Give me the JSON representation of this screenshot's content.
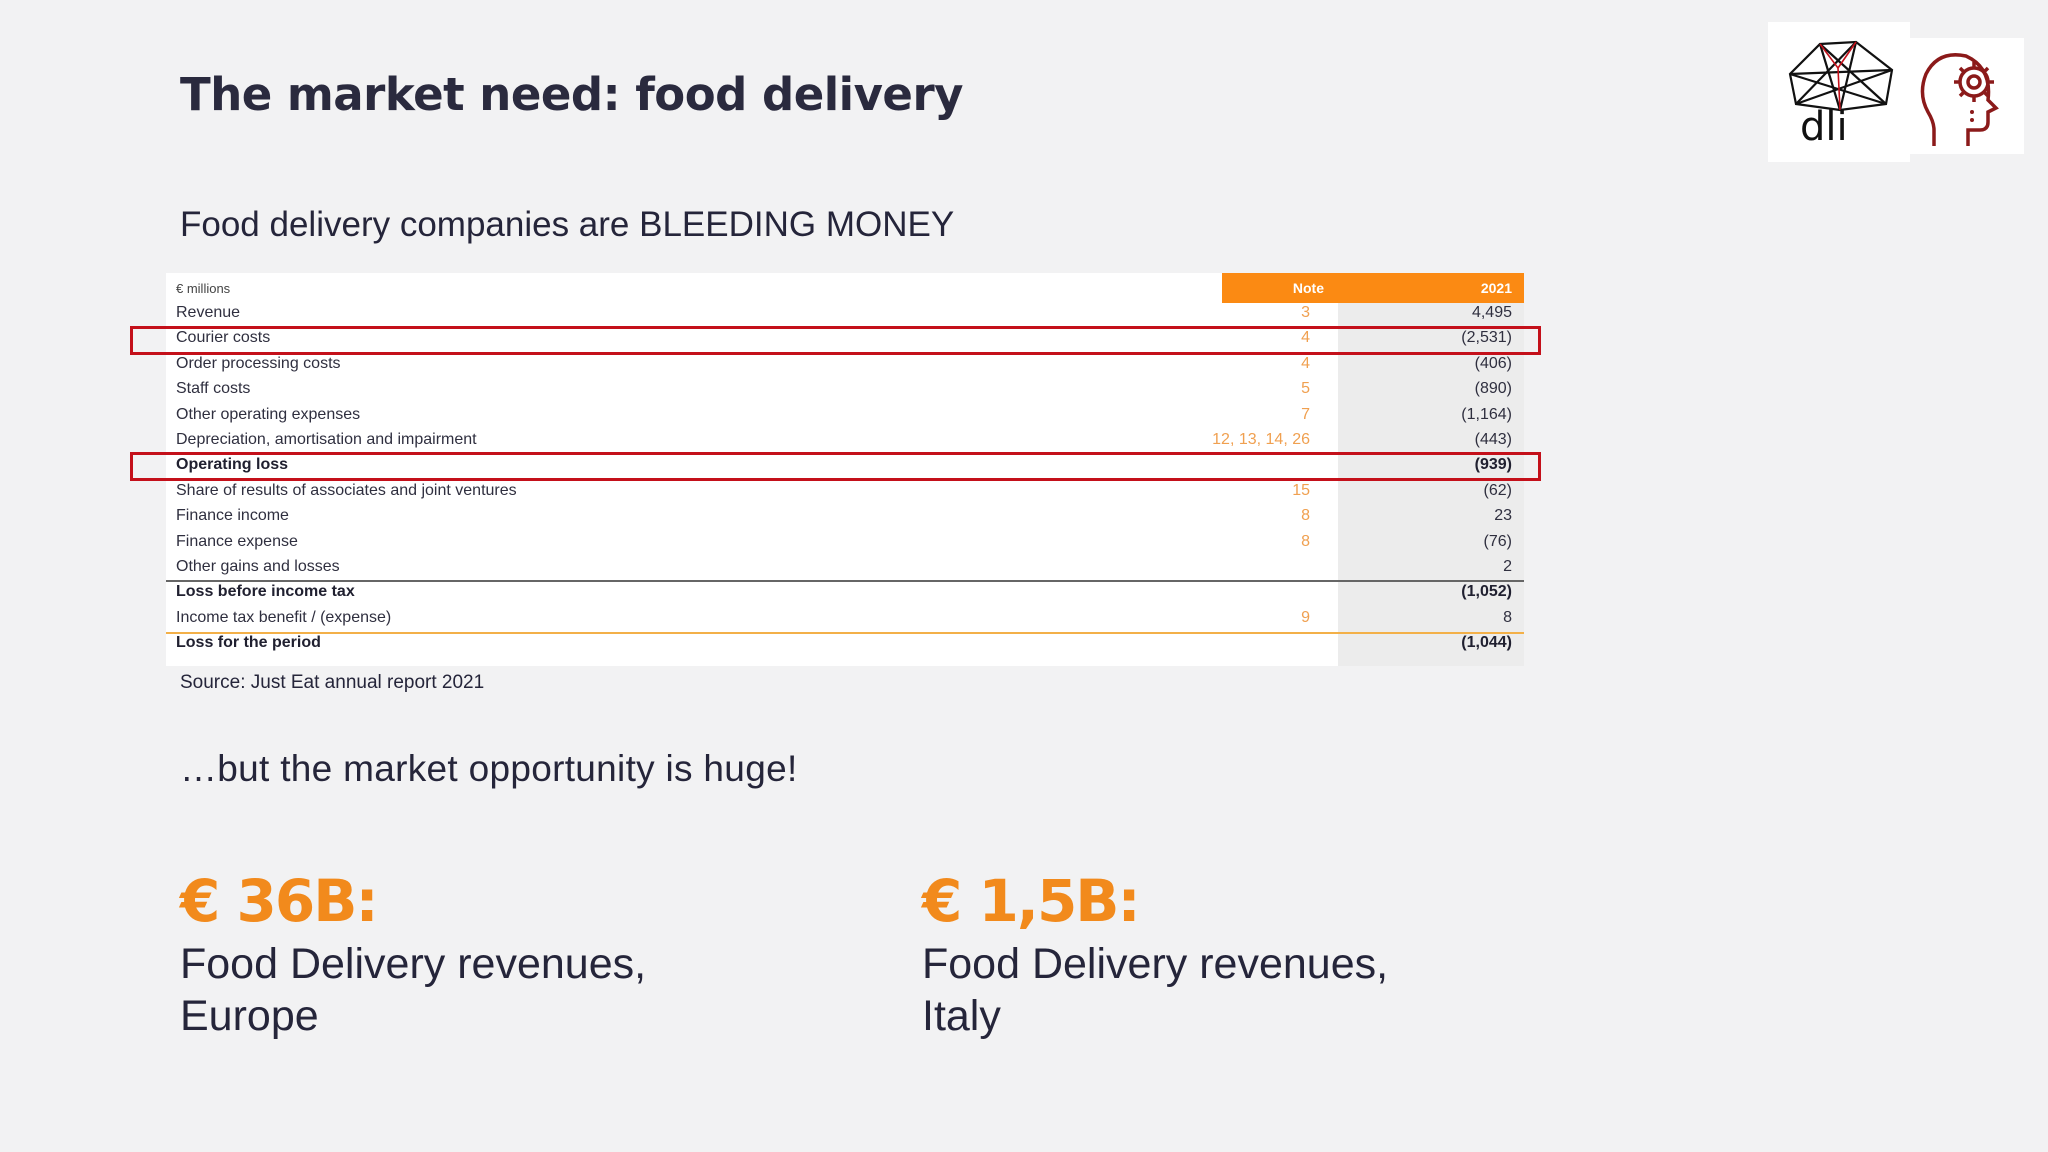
{
  "slide": {
    "title": "The market need: food delivery",
    "subtitle": "Food delivery companies are BLEEDING MONEY",
    "source": "Source: Just Eat annual report 2021",
    "tagline": "…but the market opportunity is huge!"
  },
  "logo": {
    "text": "dli"
  },
  "table": {
    "unit_label": "€ millions",
    "col_note": "Note",
    "col_year": "2021",
    "rows": [
      {
        "label": "Revenue",
        "note": "3",
        "amount": "4,495"
      },
      {
        "label": "Courier costs",
        "note": "4",
        "amount": "(2,531)",
        "highlighted": true
      },
      {
        "label": "Order processing costs",
        "note": "4",
        "amount": "(406)"
      },
      {
        "label": "Staff costs",
        "note": "5",
        "amount": "(890)"
      },
      {
        "label": "Other operating expenses",
        "note": "7",
        "amount": "(1,164)"
      },
      {
        "label": "Depreciation, amortisation and impairment",
        "note": "12, 13, 14, 26",
        "amount": "(443)"
      },
      {
        "label": "Operating loss",
        "note": "",
        "amount": "(939)",
        "bold": true,
        "highlighted": true
      },
      {
        "label": "Share of results of associates and joint ventures",
        "note": "15",
        "amount": "(62)"
      },
      {
        "label": "Finance income",
        "note": "8",
        "amount": "23"
      },
      {
        "label": "Finance expense",
        "note": "8",
        "amount": "(76)"
      },
      {
        "label": "Other gains and losses",
        "note": "",
        "amount": "2"
      },
      {
        "label": "Loss before income tax",
        "note": "",
        "amount": "(1,052)",
        "bold": true
      },
      {
        "label": "Income tax benefit / (expense)",
        "note": "9",
        "amount": "8"
      },
      {
        "label": "Loss for the period",
        "note": "",
        "amount": "(1,044)",
        "bold": true
      }
    ]
  },
  "stats": [
    {
      "value": "€ 36B:",
      "line1": "Food Delivery revenues,",
      "line2": "Europe"
    },
    {
      "value": "€ 1,5B:",
      "line1": "Food Delivery revenues,",
      "line2": "Italy"
    }
  ],
  "colors": {
    "accent": "#f28a1c",
    "highlight": "#c4101a",
    "text": "#25253a"
  }
}
